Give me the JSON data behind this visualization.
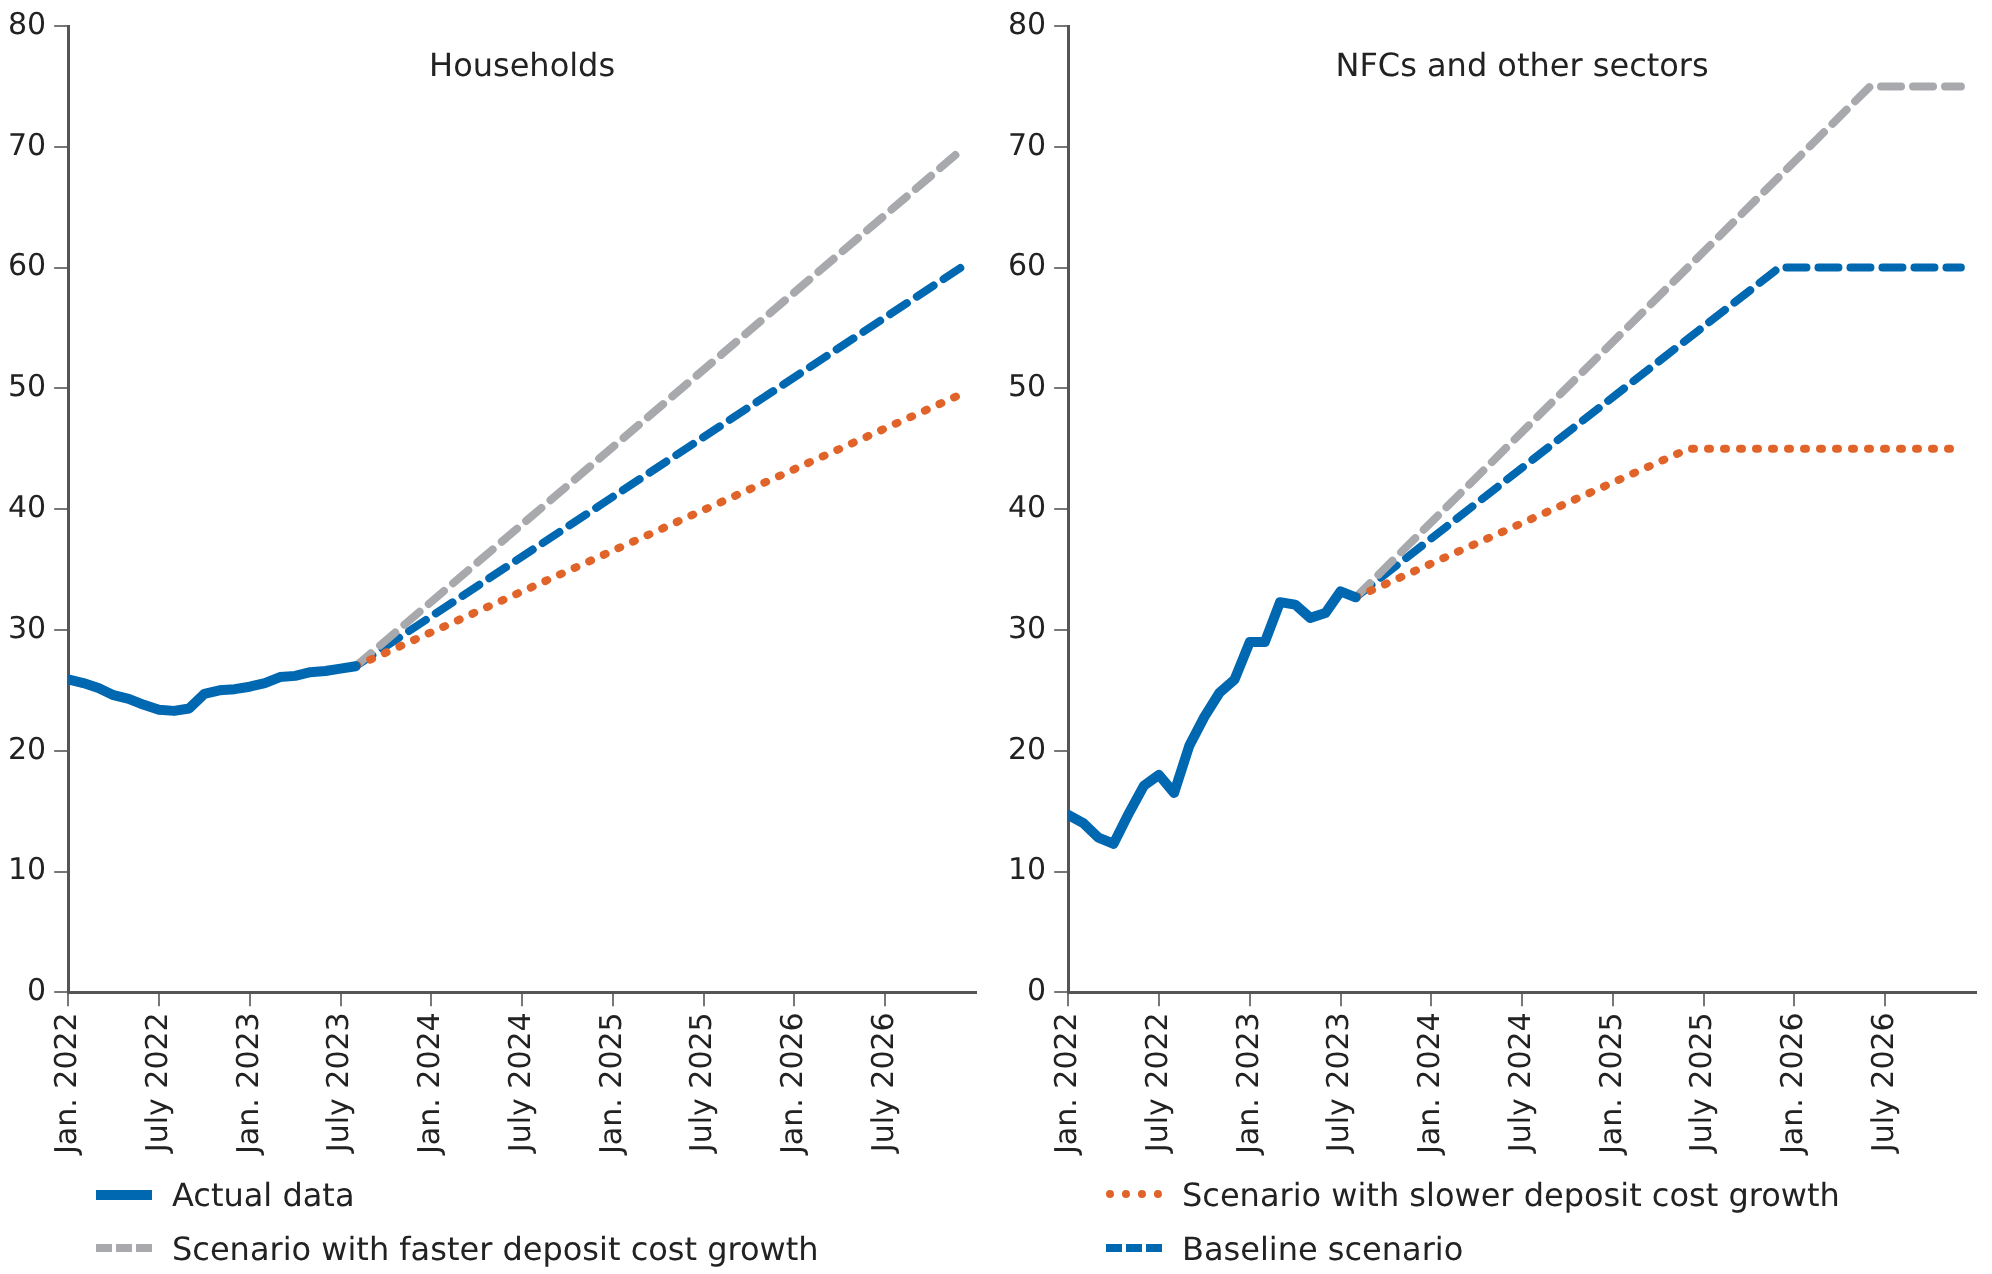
{
  "chart_data": [
    {
      "type": "line",
      "title": "Households",
      "legend": "bottom",
      "grid": false,
      "xlim": [
        "2022-01",
        "2027-01"
      ],
      "xticks": [
        {
          "value": "2022-01",
          "label": "Jan. 2022"
        },
        {
          "value": "2022-07",
          "label": "July 2022"
        },
        {
          "value": "2023-01",
          "label": "Jan. 2023"
        },
        {
          "value": "2023-07",
          "label": "July 2023"
        },
        {
          "value": "2024-01",
          "label": "Jan. 2024"
        },
        {
          "value": "2024-07",
          "label": "July 2024"
        },
        {
          "value": "2025-01",
          "label": "Jan. 2025"
        },
        {
          "value": "2025-07",
          "label": "July 2025"
        },
        {
          "value": "2026-01",
          "label": "Jan. 2026"
        },
        {
          "value": "2026-07",
          "label": "July 2026"
        }
      ],
      "ylim": [
        0,
        80
      ],
      "yticks": [
        0,
        10,
        20,
        30,
        40,
        50,
        60,
        70,
        80
      ],
      "series": [
        {
          "name": "Actual data",
          "color": "#0067b1",
          "line_style": "solid",
          "x": [
            "2022-01",
            "2022-02",
            "2022-03",
            "2022-04",
            "2022-05",
            "2022-06",
            "2022-07",
            "2022-08",
            "2022-09",
            "2022-10",
            "2022-11",
            "2022-12",
            "2023-01",
            "2023-02",
            "2023-03",
            "2023-04",
            "2023-05",
            "2023-06",
            "2023-07",
            "2023-08"
          ],
          "values": [
            25.9,
            25.6,
            25.2,
            24.6,
            24.3,
            23.8,
            23.4,
            23.3,
            23.5,
            24.7,
            25.0,
            25.1,
            25.3,
            25.6,
            26.1,
            26.2,
            26.5,
            26.6,
            26.8,
            27.0
          ]
        },
        {
          "name": "Scenario with slower deposit cost growth",
          "color": "#e0642a",
          "line_style": "dotted",
          "x": [
            "2023-08",
            "2026-12"
          ],
          "values": [
            27.0,
            49.5
          ]
        },
        {
          "name": "Scenario with faster deposit cost growth",
          "color": "#a7a9ac",
          "line_style": "dashed",
          "x": [
            "2023-08",
            "2026-12"
          ],
          "values": [
            27.0,
            69.7
          ]
        },
        {
          "name": "Baseline scenario",
          "color": "#0067b1",
          "line_style": "dashed",
          "x": [
            "2023-08",
            "2026-12"
          ],
          "values": [
            27.0,
            60.0
          ]
        }
      ]
    },
    {
      "type": "line",
      "title": "NFCs and other sectors",
      "grid": false,
      "xlim": [
        "2022-01",
        "2027-01"
      ],
      "xticks": [
        {
          "value": "2022-01",
          "label": "Jan. 2022"
        },
        {
          "value": "2022-07",
          "label": "July 2022"
        },
        {
          "value": "2023-01",
          "label": "Jan. 2023"
        },
        {
          "value": "2023-07",
          "label": "July 2023"
        },
        {
          "value": "2024-01",
          "label": "Jan. 2024"
        },
        {
          "value": "2024-07",
          "label": "July 2024"
        },
        {
          "value": "2025-01",
          "label": "Jan. 2025"
        },
        {
          "value": "2025-07",
          "label": "July 2025"
        },
        {
          "value": "2026-01",
          "label": "Jan. 2026"
        },
        {
          "value": "2026-07",
          "label": "July 2026"
        }
      ],
      "ylim": [
        0,
        80
      ],
      "yticks": [
        0,
        10,
        20,
        30,
        40,
        50,
        60,
        70,
        80
      ],
      "series": [
        {
          "color": "#0067b1",
          "line_style": "solid",
          "x": [
            "2022-01",
            "2022-02",
            "2022-03",
            "2022-04",
            "2022-05",
            "2022-06",
            "2022-07",
            "2022-08",
            "2022-09",
            "2022-10",
            "2022-11",
            "2022-12",
            "2023-01",
            "2023-02",
            "2023-03",
            "2023-04",
            "2023-05",
            "2023-06",
            "2023-07",
            "2023-08"
          ],
          "values": [
            14.7,
            14.0,
            12.8,
            12.3,
            14.8,
            17.1,
            18.0,
            16.5,
            20.4,
            22.8,
            24.8,
            25.9,
            29.0,
            29.0,
            32.3,
            32.1,
            31.0,
            31.4,
            33.2,
            32.7
          ]
        },
        {
          "color": "#e0642a",
          "line_style": "dotted",
          "x": [
            "2023-08",
            "2025-06",
            "2026-12"
          ],
          "values": [
            32.7,
            45.0,
            45.0
          ]
        },
        {
          "color": "#a7a9ac",
          "line_style": "dashed",
          "x": [
            "2023-08",
            "2026-06",
            "2026-12"
          ],
          "values": [
            32.7,
            75.0,
            75.0
          ]
        },
        {
          "color": "#0067b1",
          "line_style": "dashed",
          "x": [
            "2023-08",
            "2025-12",
            "2026-12"
          ],
          "values": [
            32.7,
            60.0,
            60.0
          ]
        }
      ]
    }
  ]
}
